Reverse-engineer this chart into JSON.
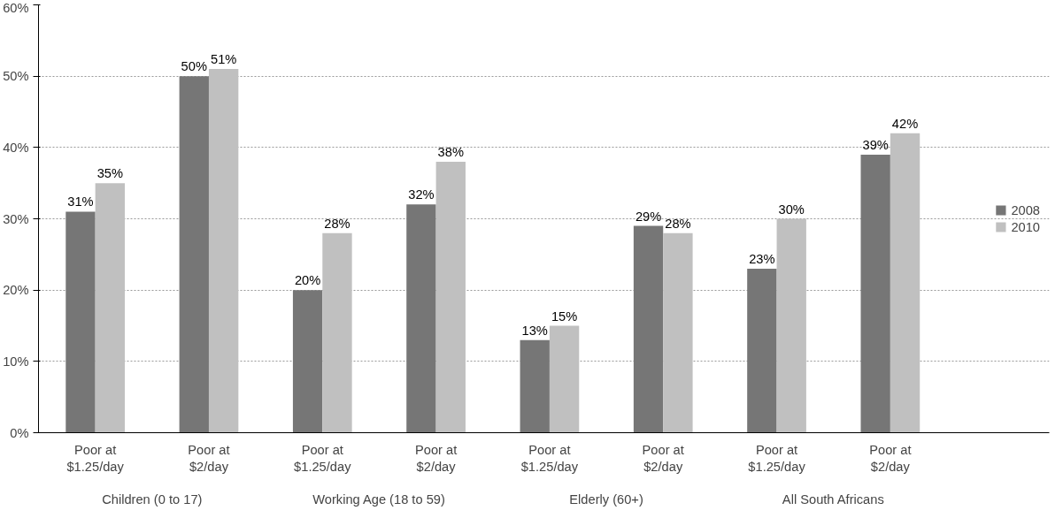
{
  "chart_data": {
    "type": "bar",
    "categories": [
      "Poor at $1.25/day",
      "Poor at $2/day",
      "Poor at $1.25/day",
      "Poor at $2/day",
      "Poor at $1.25/day",
      "Poor at $2/day",
      "Poor at $1.25/day",
      "Poor at $2/day"
    ],
    "series": [
      {
        "name": "2008",
        "color": "#767676",
        "values": [
          31,
          50,
          20,
          32,
          13,
          29,
          23,
          39
        ],
        "value_labels": [
          "31%",
          "50%",
          "20%",
          "32%",
          "13%",
          "29%",
          "23%",
          "39%"
        ]
      },
      {
        "name": "2010",
        "color": "#c0c0c0",
        "values": [
          35,
          51,
          28,
          38,
          15,
          28,
          30,
          42
        ],
        "value_labels": [
          "35%",
          "51%",
          "28%",
          "38%",
          "15%",
          "28%",
          "30%",
          "42%"
        ]
      }
    ],
    "annotations": [
      "Children (0 to 17)",
      "Working Age (18 to 59)",
      "Elderly (60+)",
      "All South Africans"
    ],
    "ylim": [
      0,
      60
    ],
    "yticks": [
      {
        "value": 0,
        "label": "0%"
      },
      {
        "value": 10,
        "label": "10%"
      },
      {
        "value": 20,
        "label": "20%"
      },
      {
        "value": 30,
        "label": "30%"
      },
      {
        "value": 40,
        "label": "40%"
      },
      {
        "value": 50,
        "label": "50%"
      },
      {
        "value": 60,
        "label": "60%"
      }
    ],
    "grid": "y",
    "legend": "right"
  }
}
